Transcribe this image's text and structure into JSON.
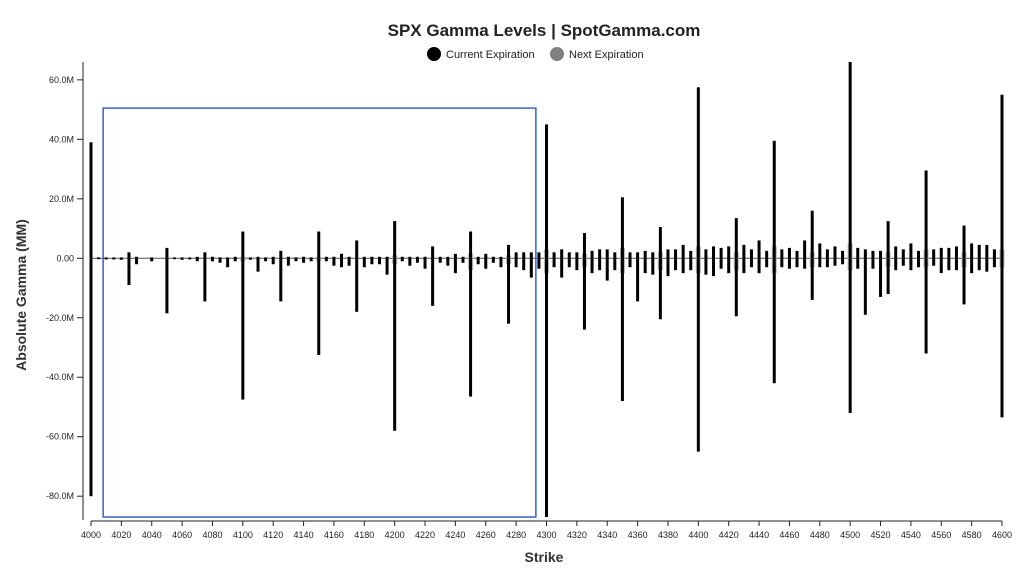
{
  "chart_data": {
    "type": "bar",
    "title": "SPX Gamma Levels | SpotGamma.com",
    "xlabel": "Strike",
    "ylabel": "Absolute Gamma (MM)",
    "xlim": [
      4000,
      4600
    ],
    "ylim": [
      -88,
      66
    ],
    "grid": false,
    "legend_position": "top-center",
    "x_ticks": [
      4000,
      4020,
      4040,
      4060,
      4080,
      4100,
      4120,
      4140,
      4160,
      4180,
      4200,
      4220,
      4240,
      4260,
      4280,
      4300,
      4320,
      4340,
      4360,
      4380,
      4400,
      4420,
      4440,
      4460,
      4480,
      4500,
      4520,
      4540,
      4560,
      4580,
      4600
    ],
    "y_ticks": [
      {
        "value": 60,
        "label": "60.0M"
      },
      {
        "value": 40,
        "label": "40.0M"
      },
      {
        "value": 20,
        "label": "20.0M"
      },
      {
        "value": 0,
        "label": "0.00"
      },
      {
        "value": -20,
        "label": "-20.0M"
      },
      {
        "value": -40,
        "label": "-40.0M"
      },
      {
        "value": -60,
        "label": "-60.0M"
      },
      {
        "value": -80,
        "label": "-80.0M"
      }
    ],
    "colors": {
      "current": "#000000",
      "next": "#b5b5b5",
      "highlight": "#3a5fcd"
    },
    "series": [
      {
        "name": "Current Expiration",
        "legend_color": "#000000",
        "bars": [
          {
            "x": 4000,
            "pos": 39,
            "neg": -80
          },
          {
            "x": 4005,
            "pos": 0.3,
            "neg": -0.3
          },
          {
            "x": 4010,
            "pos": 0.3,
            "neg": -0.4
          },
          {
            "x": 4015,
            "pos": 0.3,
            "neg": -0.4
          },
          {
            "x": 4020,
            "pos": 0.3,
            "neg": -0.5
          },
          {
            "x": 4025,
            "pos": 2,
            "neg": -9
          },
          {
            "x": 4030,
            "pos": 0.5,
            "neg": -2
          },
          {
            "x": 4040,
            "pos": 0.3,
            "neg": -1
          },
          {
            "x": 4050,
            "pos": 3.5,
            "neg": -18.5
          },
          {
            "x": 4055,
            "pos": 0.3,
            "neg": -0.3
          },
          {
            "x": 4060,
            "pos": 0.3,
            "neg": -0.5
          },
          {
            "x": 4065,
            "pos": 0.3,
            "neg": -0.4
          },
          {
            "x": 4070,
            "pos": 0.5,
            "neg": -1
          },
          {
            "x": 4075,
            "pos": 2,
            "neg": -14.5
          },
          {
            "x": 4080,
            "pos": 0.5,
            "neg": -1
          },
          {
            "x": 4085,
            "pos": 0.3,
            "neg": -1.5
          },
          {
            "x": 4090,
            "pos": 0.3,
            "neg": -3
          },
          {
            "x": 4095,
            "pos": 0.5,
            "neg": -1
          },
          {
            "x": 4100,
            "pos": 9,
            "neg": -47.5
          },
          {
            "x": 4105,
            "pos": 0.3,
            "neg": -0.5
          },
          {
            "x": 4110,
            "pos": 0.5,
            "neg": -4.5
          },
          {
            "x": 4115,
            "pos": 0.3,
            "neg": -1
          },
          {
            "x": 4120,
            "pos": 0.5,
            "neg": -2
          },
          {
            "x": 4125,
            "pos": 2.5,
            "neg": -14.5
          },
          {
            "x": 4130,
            "pos": 0.5,
            "neg": -2.5
          },
          {
            "x": 4135,
            "pos": 0.3,
            "neg": -1
          },
          {
            "x": 4140,
            "pos": 0.5,
            "neg": -1.5
          },
          {
            "x": 4145,
            "pos": 0.3,
            "neg": -1
          },
          {
            "x": 4150,
            "pos": 9,
            "neg": -32.5
          },
          {
            "x": 4155,
            "pos": 0.5,
            "neg": -1
          },
          {
            "x": 4160,
            "pos": 0.5,
            "neg": -2.5
          },
          {
            "x": 4165,
            "pos": 1.5,
            "neg": -3
          },
          {
            "x": 4170,
            "pos": 0.5,
            "neg": -2.5
          },
          {
            "x": 4175,
            "pos": 6,
            "neg": -18
          },
          {
            "x": 4180,
            "pos": 0.5,
            "neg": -3
          },
          {
            "x": 4185,
            "pos": 0.5,
            "neg": -2
          },
          {
            "x": 4190,
            "pos": 0.5,
            "neg": -2
          },
          {
            "x": 4195,
            "pos": 0.5,
            "neg": -5.5
          },
          {
            "x": 4200,
            "pos": 12.5,
            "neg": -58
          },
          {
            "x": 4205,
            "pos": 0.5,
            "neg": -1
          },
          {
            "x": 4210,
            "pos": 0.5,
            "neg": -2.5
          },
          {
            "x": 4215,
            "pos": 0.5,
            "neg": -1.5
          },
          {
            "x": 4220,
            "pos": 0.5,
            "neg": -3.5
          },
          {
            "x": 4225,
            "pos": 4,
            "neg": -16
          },
          {
            "x": 4230,
            "pos": 0.5,
            "neg": -1.5
          },
          {
            "x": 4235,
            "pos": 0.5,
            "neg": -2.5
          },
          {
            "x": 4240,
            "pos": 1.5,
            "neg": -5
          },
          {
            "x": 4245,
            "pos": 0.5,
            "neg": -1.5
          },
          {
            "x": 4250,
            "pos": 9,
            "neg": -46.5
          },
          {
            "x": 4255,
            "pos": 0.5,
            "neg": -2
          },
          {
            "x": 4260,
            "pos": 1.5,
            "neg": -3.5
          },
          {
            "x": 4265,
            "pos": 0.5,
            "neg": -1.5
          },
          {
            "x": 4270,
            "pos": 0.5,
            "neg": -3
          },
          {
            "x": 4275,
            "pos": 4.5,
            "neg": -22
          },
          {
            "x": 4280,
            "pos": 2,
            "neg": -3
          },
          {
            "x": 4285,
            "pos": 2,
            "neg": -4
          },
          {
            "x": 4290,
            "pos": 2,
            "neg": -6.5
          },
          {
            "x": 4295,
            "pos": 2,
            "neg": -3.5
          },
          {
            "x": 4300,
            "pos": 45,
            "neg": -87
          },
          {
            "x": 4305,
            "pos": 2,
            "neg": -3
          },
          {
            "x": 4310,
            "pos": 3,
            "neg": -6.5
          },
          {
            "x": 4315,
            "pos": 2,
            "neg": -3
          },
          {
            "x": 4320,
            "pos": 2,
            "neg": -4
          },
          {
            "x": 4325,
            "pos": 8.5,
            "neg": -24
          },
          {
            "x": 4330,
            "pos": 2.5,
            "neg": -5
          },
          {
            "x": 4335,
            "pos": 3,
            "neg": -4
          },
          {
            "x": 4340,
            "pos": 3,
            "neg": -7.5
          },
          {
            "x": 4345,
            "pos": 2,
            "neg": -4
          },
          {
            "x": 4350,
            "pos": 20.5,
            "neg": -48
          },
          {
            "x": 4355,
            "pos": 2,
            "neg": -3
          },
          {
            "x": 4360,
            "pos": 2,
            "neg": -14.5
          },
          {
            "x": 4365,
            "pos": 2.5,
            "neg": -5
          },
          {
            "x": 4370,
            "pos": 2,
            "neg": -5.5
          },
          {
            "x": 4375,
            "pos": 10.5,
            "neg": -20.5
          },
          {
            "x": 4380,
            "pos": 3,
            "neg": -6
          },
          {
            "x": 4385,
            "pos": 3,
            "neg": -4
          },
          {
            "x": 4390,
            "pos": 4.5,
            "neg": -5
          },
          {
            "x": 4395,
            "pos": 2.5,
            "neg": -4
          },
          {
            "x": 4400,
            "pos": 57.5,
            "neg": -65
          },
          {
            "x": 4405,
            "pos": 3,
            "neg": -5.5
          },
          {
            "x": 4410,
            "pos": 4,
            "neg": -6
          },
          {
            "x": 4415,
            "pos": 3.5,
            "neg": -3.5
          },
          {
            "x": 4420,
            "pos": 4,
            "neg": -5
          },
          {
            "x": 4425,
            "pos": 13.5,
            "neg": -19.5
          },
          {
            "x": 4430,
            "pos": 4.5,
            "neg": -5
          },
          {
            "x": 4435,
            "pos": 3,
            "neg": -3
          },
          {
            "x": 4440,
            "pos": 6,
            "neg": -5
          },
          {
            "x": 4445,
            "pos": 2.5,
            "neg": -3
          },
          {
            "x": 4450,
            "pos": 39.5,
            "neg": -42
          },
          {
            "x": 4455,
            "pos": 3,
            "neg": -3
          },
          {
            "x": 4460,
            "pos": 3.5,
            "neg": -3.5
          },
          {
            "x": 4465,
            "pos": 2.5,
            "neg": -3
          },
          {
            "x": 4470,
            "pos": 6,
            "neg": -3.5
          },
          {
            "x": 4475,
            "pos": 16,
            "neg": -14
          },
          {
            "x": 4480,
            "pos": 5,
            "neg": -3
          },
          {
            "x": 4485,
            "pos": 3,
            "neg": -3
          },
          {
            "x": 4490,
            "pos": 4,
            "neg": -2.5
          },
          {
            "x": 4495,
            "pos": 2.5,
            "neg": -2
          },
          {
            "x": 4500,
            "pos": 66,
            "neg": -52
          },
          {
            "x": 4505,
            "pos": 3.5,
            "neg": -3.5
          },
          {
            "x": 4510,
            "pos": 3,
            "neg": -19
          },
          {
            "x": 4515,
            "pos": 2.5,
            "neg": -3.5
          },
          {
            "x": 4520,
            "pos": 2.5,
            "neg": -13
          },
          {
            "x": 4525,
            "pos": 12.5,
            "neg": -12
          },
          {
            "x": 4530,
            "pos": 4,
            "neg": -4
          },
          {
            "x": 4535,
            "pos": 3,
            "neg": -2.5
          },
          {
            "x": 4540,
            "pos": 5,
            "neg": -4
          },
          {
            "x": 4545,
            "pos": 2.5,
            "neg": -3
          },
          {
            "x": 4550,
            "pos": 29.5,
            "neg": -32
          },
          {
            "x": 4555,
            "pos": 3,
            "neg": -2.5
          },
          {
            "x": 4560,
            "pos": 3.5,
            "neg": -5
          },
          {
            "x": 4565,
            "pos": 3.5,
            "neg": -4
          },
          {
            "x": 4570,
            "pos": 4,
            "neg": -4
          },
          {
            "x": 4575,
            "pos": 11,
            "neg": -15.5
          },
          {
            "x": 4580,
            "pos": 5,
            "neg": -5
          },
          {
            "x": 4585,
            "pos": 4.5,
            "neg": -4
          },
          {
            "x": 4590,
            "pos": 4.5,
            "neg": -4.5
          },
          {
            "x": 4595,
            "pos": 3,
            "neg": -3
          },
          {
            "x": 4600,
            "pos": 55,
            "neg": -53.5
          }
        ]
      },
      {
        "name": "Next Expiration",
        "legend_color": "#808080",
        "bars": [
          {
            "x": 4100,
            "pos": 0.5,
            "neg": -1
          },
          {
            "x": 4150,
            "pos": 0.5,
            "neg": -1
          },
          {
            "x": 4200,
            "pos": 1,
            "neg": -2
          },
          {
            "x": 4250,
            "pos": 1.5,
            "neg": -4
          },
          {
            "x": 4275,
            "pos": 1,
            "neg": -2
          },
          {
            "x": 4300,
            "pos": 3,
            "neg": -5
          },
          {
            "x": 4325,
            "pos": 1.5,
            "neg": -3
          },
          {
            "x": 4350,
            "pos": 3.5,
            "neg": -5
          },
          {
            "x": 4375,
            "pos": 2,
            "neg": -4
          },
          {
            "x": 4400,
            "pos": 4,
            "neg": -5
          },
          {
            "x": 4425,
            "pos": 2,
            "neg": -4
          },
          {
            "x": 4450,
            "pos": 4,
            "neg": -5
          },
          {
            "x": 4475,
            "pos": 2,
            "neg": -3
          },
          {
            "x": 4500,
            "pos": 5,
            "neg": -4
          },
          {
            "x": 4525,
            "pos": 2,
            "neg": -3
          },
          {
            "x": 4550,
            "pos": 3,
            "neg": -3
          },
          {
            "x": 4575,
            "pos": 2,
            "neg": -3
          },
          {
            "x": 4600,
            "pos": 3,
            "neg": -3
          }
        ]
      }
    ],
    "highlight_range": {
      "x": [
        4008,
        4293
      ],
      "y": [
        -87,
        50.5
      ]
    }
  }
}
